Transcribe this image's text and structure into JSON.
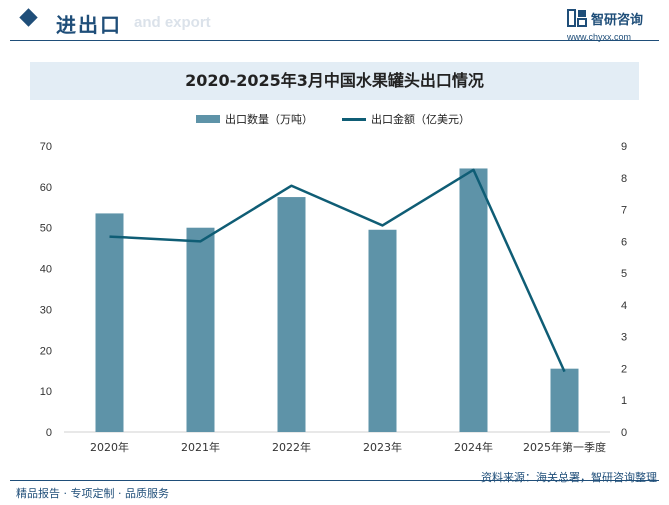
{
  "header": {
    "title": "进出口",
    "subtitle": "and export",
    "logo_name": "智研咨询",
    "logo_url": "www.chyxx.com"
  },
  "chart_title": "2020-2025年3月中国水果罐头出口情况",
  "footer": {
    "left": "精品报告 · 专项定制 · 品质服务",
    "source": "资料来源：海关总署，智研咨询整理"
  },
  "colors": {
    "bar": "#5e93a8",
    "line": "#0f5d75",
    "brand": "#1f4e79"
  },
  "chart_data": {
    "type": "bar",
    "title": "2020-2025年3月中国水果罐头出口情况",
    "categories": [
      "2020年",
      "2021年",
      "2022年",
      "2023年",
      "2024年",
      "2025年第一季度"
    ],
    "series": [
      {
        "name": "出口数量（万吨）",
        "type": "bar",
        "axis": "left",
        "values": [
          53.5,
          50,
          57.5,
          49.5,
          64.5,
          15.5
        ]
      },
      {
        "name": "出口金额（亿美元）",
        "type": "line",
        "axis": "right",
        "values": [
          6.15,
          6.0,
          7.75,
          6.5,
          8.25,
          1.9
        ]
      }
    ],
    "y_left": {
      "min": 0,
      "max": 70,
      "ticks": [
        0,
        10,
        20,
        30,
        40,
        50,
        60,
        70
      ]
    },
    "y_right": {
      "min": 0,
      "max": 9,
      "ticks": [
        0,
        1,
        2,
        3,
        4,
        5,
        6,
        7,
        8,
        9
      ]
    },
    "xlabel": "",
    "ylabel": "",
    "legend": "top-center",
    "grid": false
  }
}
